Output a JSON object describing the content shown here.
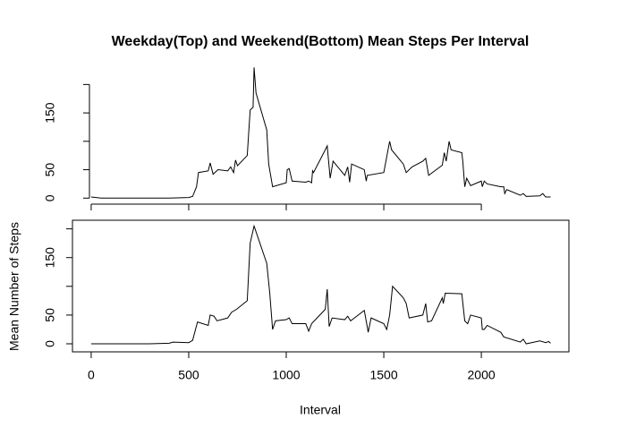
{
  "chart_data": [
    {
      "type": "line",
      "title": "Weekday(Top) and Weekend(Bottom) Mean Steps Per Interval",
      "ylabel": "Mean Number of Steps",
      "x": [
        0,
        50,
        100,
        200,
        300,
        400,
        500,
        520,
        540,
        550,
        600,
        610,
        625,
        650,
        700,
        715,
        730,
        740,
        750,
        800,
        815,
        830,
        835,
        845,
        900,
        910,
        930,
        1000,
        1005,
        1015,
        1030,
        1100,
        1115,
        1130,
        1135,
        1140,
        1200,
        1210,
        1225,
        1240,
        1300,
        1315,
        1325,
        1335,
        1400,
        1410,
        1415,
        1500,
        1530,
        1540,
        1600,
        1615,
        1645,
        1700,
        1715,
        1730,
        1800,
        1810,
        1820,
        1835,
        1845,
        1900,
        1905,
        1915,
        1925,
        1945,
        2000,
        2005,
        2015,
        2030,
        2100,
        2115,
        2120,
        2130,
        2200,
        2215,
        2230,
        2300,
        2315,
        2330,
        2355
      ],
      "series": [
        {
          "color": "#000000",
          "values": [
            2,
            0,
            0,
            0,
            0,
            0,
            1,
            3,
            20,
            45,
            48,
            62,
            42,
            50,
            48,
            55,
            45,
            67,
            57,
            75,
            155,
            160,
            230,
            185,
            120,
            60,
            20,
            27,
            50,
            52,
            30,
            28,
            30,
            27,
            48,
            45,
            85,
            92,
            35,
            65,
            40,
            55,
            28,
            60,
            50,
            30,
            40,
            45,
            100,
            85,
            60,
            45,
            55,
            65,
            70,
            40,
            58,
            80,
            65,
            100,
            85,
            80,
            65,
            20,
            35,
            22,
            30,
            20,
            30,
            25,
            20,
            20,
            8,
            15,
            5,
            8,
            3,
            4,
            8,
            2,
            2
          ]
        }
      ],
      "xlim": [
        -96,
        2449
      ],
      "ylim": [
        -9,
        240
      ],
      "xtick_marks": [
        0,
        500,
        1000,
        1500,
        2000
      ],
      "ytick_marks": [
        0,
        50,
        100,
        150,
        200
      ],
      "yticks": [
        0,
        50,
        150
      ]
    },
    {
      "type": "line",
      "xlabel": "Interval",
      "x": [
        0,
        100,
        200,
        300,
        400,
        420,
        500,
        520,
        545,
        600,
        610,
        630,
        645,
        700,
        720,
        745,
        800,
        815,
        835,
        900,
        915,
        930,
        945,
        1000,
        1015,
        1030,
        1100,
        1115,
        1130,
        1200,
        1210,
        1220,
        1235,
        1300,
        1315,
        1330,
        1400,
        1415,
        1420,
        1435,
        1500,
        1515,
        1530,
        1545,
        1600,
        1615,
        1630,
        1700,
        1715,
        1725,
        1745,
        1800,
        1805,
        1815,
        1900,
        1915,
        1930,
        1945,
        2000,
        2005,
        2015,
        2030,
        2100,
        2115,
        2200,
        2215,
        2230,
        2300,
        2330,
        2345,
        2355
      ],
      "series": [
        {
          "color": "#000000",
          "values": [
            0,
            0,
            0,
            0,
            1,
            3,
            2,
            6,
            38,
            32,
            50,
            48,
            40,
            45,
            55,
            60,
            75,
            175,
            205,
            140,
            90,
            25,
            40,
            42,
            45,
            35,
            35,
            22,
            35,
            60,
            95,
            30,
            45,
            42,
            48,
            40,
            58,
            30,
            20,
            45,
            35,
            25,
            50,
            100,
            80,
            70,
            45,
            50,
            70,
            38,
            40,
            80,
            70,
            88,
            87,
            40,
            35,
            50,
            45,
            25,
            25,
            32,
            20,
            12,
            3,
            8,
            0,
            5,
            2,
            4,
            1
          ]
        }
      ],
      "xlim": [
        -96,
        2449
      ],
      "ylim": [
        -14,
        215
      ],
      "xticks": [
        0,
        500,
        1000,
        1500,
        2000
      ],
      "ytick_marks": [
        0,
        50,
        100,
        150,
        200
      ],
      "yticks": [
        0,
        50,
        150
      ]
    }
  ]
}
